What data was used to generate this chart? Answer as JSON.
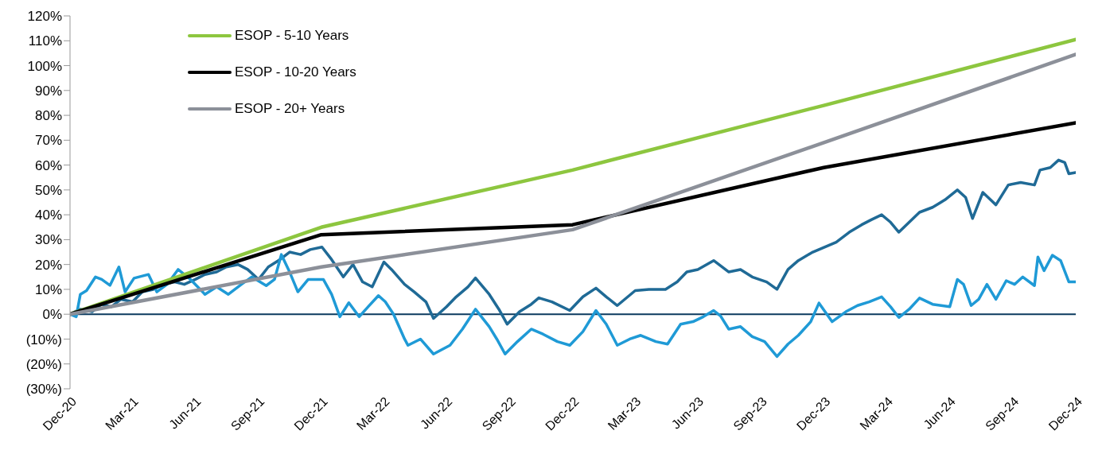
{
  "chart_data": {
    "type": "line",
    "legend": "top left",
    "grid": false,
    "marker": "none",
    "line_style": "solid",
    "xlim": [
      "2020-12-31",
      "2024-12-31"
    ],
    "xticks": [
      {
        "value": "2020-12-31",
        "label": "Dec-20"
      },
      {
        "value": "2021-03-31",
        "label": "Mar-21"
      },
      {
        "value": "2021-06-30",
        "label": "Jun-21"
      },
      {
        "value": "2021-09-30",
        "label": "Sep-21"
      },
      {
        "value": "2021-12-31",
        "label": "Dec-21"
      },
      {
        "value": "2022-03-31",
        "label": "Mar-22"
      },
      {
        "value": "2022-06-30",
        "label": "Jun-22"
      },
      {
        "value": "2022-09-30",
        "label": "Sep-22"
      },
      {
        "value": "2022-12-31",
        "label": "Dec-22"
      },
      {
        "value": "2023-03-31",
        "label": "Mar-23"
      },
      {
        "value": "2023-06-30",
        "label": "Jun-23"
      },
      {
        "value": "2023-09-30",
        "label": "Sep-23"
      },
      {
        "value": "2023-12-31",
        "label": "Dec-23"
      },
      {
        "value": "2024-03-31",
        "label": "Mar-24"
      },
      {
        "value": "2024-06-30",
        "label": "Jun-24"
      },
      {
        "value": "2024-09-30",
        "label": "Sep-24"
      },
      {
        "value": "2024-12-31",
        "label": "Dec-24"
      }
    ],
    "ylim": [
      -30,
      120
    ],
    "yticks": [
      {
        "value": -30,
        "label": "(30%)"
      },
      {
        "value": -20,
        "label": "(20%)"
      },
      {
        "value": -10,
        "label": "(10%)"
      },
      {
        "value": 0,
        "label": "0%"
      },
      {
        "value": 10,
        "label": "10%"
      },
      {
        "value": 20,
        "label": "20%"
      },
      {
        "value": 30,
        "label": "30%"
      },
      {
        "value": 40,
        "label": "40%"
      },
      {
        "value": 50,
        "label": "50%"
      },
      {
        "value": 60,
        "label": "60%"
      },
      {
        "value": 70,
        "label": "70%"
      },
      {
        "value": 80,
        "label": "80%"
      },
      {
        "value": 90,
        "label": "90%"
      },
      {
        "value": 100,
        "label": "100%"
      },
      {
        "value": 110,
        "label": "110%"
      },
      {
        "value": 120,
        "label": "120%"
      }
    ],
    "ref_lines": [
      {
        "axis": "y",
        "value": 0,
        "color": "#0b3a5e"
      }
    ],
    "series": [
      {
        "color": "#1f6a96",
        "x": [
          "2020-12-31",
          "2021-01-15",
          "2021-02-01",
          "2021-02-15",
          "2021-03-01",
          "2021-03-15",
          "2021-04-01",
          "2021-04-15",
          "2021-05-01",
          "2021-05-15",
          "2021-06-01",
          "2021-06-15",
          "2021-07-01",
          "2021-07-15",
          "2021-08-01",
          "2021-08-15",
          "2021-09-01",
          "2021-09-15",
          "2021-10-01",
          "2021-10-15",
          "2021-11-01",
          "2021-11-15",
          "2021-12-01",
          "2021-12-15",
          "2022-01-01",
          "2022-01-15",
          "2022-02-01",
          "2022-02-15",
          "2022-03-01",
          "2022-03-15",
          "2022-04-01",
          "2022-04-12",
          "2022-05-01",
          "2022-05-15",
          "2022-06-01",
          "2022-06-12",
          "2022-07-01",
          "2022-07-15",
          "2022-08-01",
          "2022-08-12",
          "2022-09-01",
          "2022-09-15",
          "2022-09-27",
          "2022-10-15",
          "2022-11-01",
          "2022-11-12",
          "2022-12-01",
          "2022-12-27",
          "2023-01-15",
          "2023-02-03",
          "2023-02-18",
          "2023-03-06",
          "2023-04-01",
          "2023-04-21",
          "2023-05-15",
          "2023-06-01",
          "2023-06-15",
          "2023-07-01",
          "2023-07-24",
          "2023-08-15",
          "2023-09-01",
          "2023-09-18",
          "2023-10-09",
          "2023-10-24",
          "2023-11-09",
          "2023-11-24",
          "2023-12-15",
          "2024-01-01",
          "2024-01-18",
          "2024-02-06",
          "2024-02-24",
          "2024-03-09",
          "2024-03-24",
          "2024-04-06",
          "2024-04-18",
          "2024-05-03",
          "2024-05-18",
          "2024-06-06",
          "2024-06-24",
          "2024-07-12",
          "2024-07-24",
          "2024-08-03",
          "2024-08-18",
          "2024-09-06",
          "2024-09-24",
          "2024-10-12",
          "2024-11-01",
          "2024-11-09",
          "2024-11-24",
          "2024-12-06",
          "2024-12-15",
          "2024-12-21",
          "2024-12-31"
        ],
        "values": [
          0,
          2,
          1,
          4,
          3,
          6,
          5,
          9,
          10,
          12,
          13,
          12,
          14,
          16,
          17,
          19,
          20,
          18,
          14,
          19,
          22,
          25,
          24,
          26,
          27,
          22,
          15,
          20,
          13,
          11,
          21,
          18,
          12,
          9,
          5,
          -1.7,
          3,
          7,
          11,
          14.6,
          8,
          2,
          -4,
          1,
          4,
          6.6,
          5,
          1.5,
          7,
          10.5,
          7,
          3.5,
          9.5,
          10,
          10,
          13,
          17,
          18,
          21.6,
          17,
          18,
          15,
          13,
          10,
          18,
          21.6,
          25,
          27,
          29,
          33,
          36,
          38,
          40,
          37,
          33,
          37,
          41,
          43,
          46,
          50,
          47,
          38.5,
          49,
          44,
          52,
          53,
          52,
          58,
          59,
          62,
          61,
          56.5,
          57
        ]
      },
      {
        "color": "#1f9ad6",
        "x": [
          "2020-12-31",
          "2021-01-09",
          "2021-01-15",
          "2021-01-24",
          "2021-02-06",
          "2021-02-15",
          "2021-02-27",
          "2021-03-12",
          "2021-03-21",
          "2021-04-03",
          "2021-04-24",
          "2021-05-06",
          "2021-05-21",
          "2021-06-06",
          "2021-06-24",
          "2021-07-15",
          "2021-08-01",
          "2021-08-18",
          "2021-09-06",
          "2021-09-21",
          "2021-10-12",
          "2021-10-24",
          "2021-11-03",
          "2021-11-15",
          "2021-11-27",
          "2021-12-12",
          "2022-01-03",
          "2022-01-15",
          "2022-01-27",
          "2022-02-09",
          "2022-02-24",
          "2022-03-09",
          "2022-03-24",
          "2022-04-03",
          "2022-04-15",
          "2022-05-01",
          "2022-05-06",
          "2022-05-24",
          "2022-06-12",
          "2022-07-06",
          "2022-07-24",
          "2022-08-12",
          "2022-09-01",
          "2022-09-12",
          "2022-09-24",
          "2022-10-12",
          "2022-11-01",
          "2022-11-18",
          "2022-12-09",
          "2022-12-27",
          "2023-01-15",
          "2023-02-03",
          "2023-02-18",
          "2023-03-06",
          "2023-03-24",
          "2023-04-09",
          "2023-05-01",
          "2023-05-18",
          "2023-06-06",
          "2023-06-24",
          "2023-07-09",
          "2023-07-24",
          "2023-08-03",
          "2023-08-15",
          "2023-09-01",
          "2023-09-18",
          "2023-10-06",
          "2023-10-24",
          "2023-11-09",
          "2023-11-24",
          "2023-12-12",
          "2023-12-24",
          "2024-01-12",
          "2024-02-01",
          "2024-02-18",
          "2024-03-06",
          "2024-03-24",
          "2024-04-06",
          "2024-04-18",
          "2024-05-03",
          "2024-05-18",
          "2024-06-06",
          "2024-07-01",
          "2024-07-12",
          "2024-07-21",
          "2024-08-01",
          "2024-08-12",
          "2024-08-24",
          "2024-09-06",
          "2024-09-21",
          "2024-10-03",
          "2024-10-15",
          "2024-11-01",
          "2024-11-06",
          "2024-11-15",
          "2024-11-27",
          "2024-12-09",
          "2024-12-21",
          "2024-12-31"
        ],
        "values": [
          0,
          -1,
          8,
          9.5,
          15,
          14,
          11.6,
          19,
          9,
          14.5,
          16,
          9,
          12,
          18,
          14,
          8,
          11,
          8,
          12,
          15,
          11.5,
          14,
          24,
          17,
          9,
          14,
          14,
          8,
          -1,
          4.6,
          -1,
          3,
          7.5,
          5,
          0,
          -10,
          -12.5,
          -10,
          -16,
          -12.5,
          -6,
          2,
          -5,
          -10,
          -16,
          -11,
          -6,
          -8,
          -11,
          -12.5,
          -7,
          1.5,
          -4,
          -12.5,
          -10,
          -8.5,
          -11,
          -12,
          -4,
          -3,
          -1,
          1.5,
          -0.7,
          -6,
          -5,
          -9,
          -11,
          -17,
          -12,
          -8.5,
          -3,
          4.5,
          -3,
          1,
          3.5,
          5,
          7,
          3,
          -1.3,
          2,
          6.5,
          4,
          3,
          14,
          12,
          3.5,
          6,
          12,
          6,
          13.5,
          12,
          15,
          11.5,
          23,
          17.5,
          23.7,
          21.6,
          13,
          13
        ]
      },
      {
        "name": "ESOP - 5-10 Years",
        "color": "#8dc63f",
        "x": [
          "2020-12-31",
          "2021-12-31",
          "2022-12-31",
          "2023-12-31",
          "2024-12-31"
        ],
        "values": [
          0,
          35,
          58,
          84,
          110.5
        ]
      },
      {
        "name": "ESOP - 10-20 Years",
        "color": "#000000",
        "x": [
          "2020-12-31",
          "2021-12-31",
          "2022-12-31",
          "2023-12-31",
          "2024-12-31"
        ],
        "values": [
          0,
          32,
          36,
          59,
          77
        ]
      },
      {
        "name": "ESOP - 20+ Years",
        "color": "#8c9099",
        "x": [
          "2020-12-31",
          "2021-12-31",
          "2022-12-31",
          "2023-12-31",
          "2024-12-31"
        ],
        "values": [
          0,
          19,
          34,
          69,
          104.5
        ]
      }
    ]
  }
}
